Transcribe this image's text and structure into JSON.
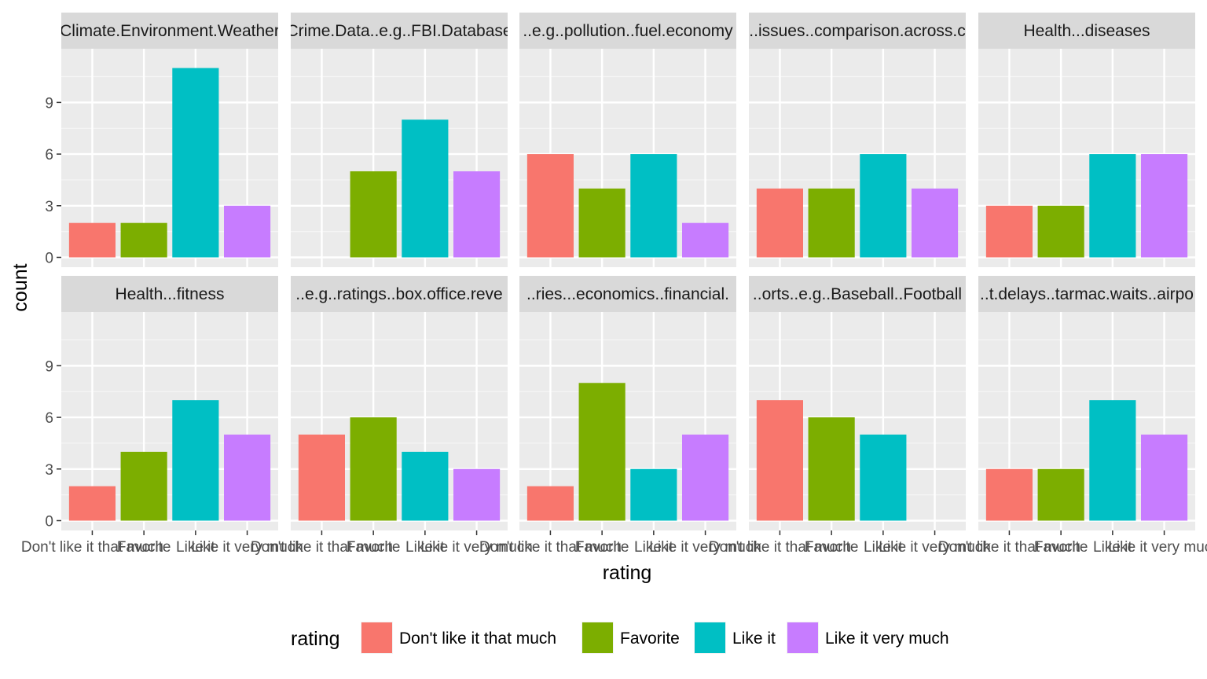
{
  "chart_data": {
    "type": "bar",
    "layout": "faceted 2 rows x 5 columns",
    "xlabel": "rating",
    "ylabel": "count",
    "ylim": [
      0,
      11.55
    ],
    "yticks": [
      0,
      3,
      6,
      9
    ],
    "grid": true,
    "legend_position": "bottom",
    "legend_title": "rating",
    "categories": [
      "Don't like it that much",
      "Favorite",
      "Like it",
      "Like it very much"
    ],
    "colors": [
      "#F8766D",
      "#7CAE00",
      "#00BFC4",
      "#C77CFF"
    ],
    "facets": [
      {
        "label": "Climate.Environment.Weather",
        "values": [
          2,
          2,
          11,
          3
        ]
      },
      {
        "label": "Crime.Data..e.g..FBI.Database",
        "values": [
          0,
          5,
          8,
          5
        ]
      },
      {
        "label": "..e.g..pollution..fuel.economy",
        "values": [
          6,
          4,
          6,
          2
        ]
      },
      {
        "label": "..issues..comparison.across.c",
        "values": [
          4,
          4,
          6,
          4
        ]
      },
      {
        "label": "Health...diseases",
        "values": [
          3,
          3,
          6,
          6
        ]
      },
      {
        "label": "Health...fitness",
        "values": [
          2,
          4,
          7,
          5
        ]
      },
      {
        "label": "..e.g..ratings..box.office.reve",
        "values": [
          5,
          6,
          4,
          3
        ]
      },
      {
        "label": "..ries...economics..financial.",
        "values": [
          2,
          8,
          3,
          5
        ]
      },
      {
        "label": "..orts..e.g..Baseball..Football",
        "values": [
          7,
          6,
          5,
          0
        ]
      },
      {
        "label": "..t.delays..tarmac.waits..airpo",
        "values": [
          3,
          3,
          7,
          5
        ]
      }
    ]
  }
}
